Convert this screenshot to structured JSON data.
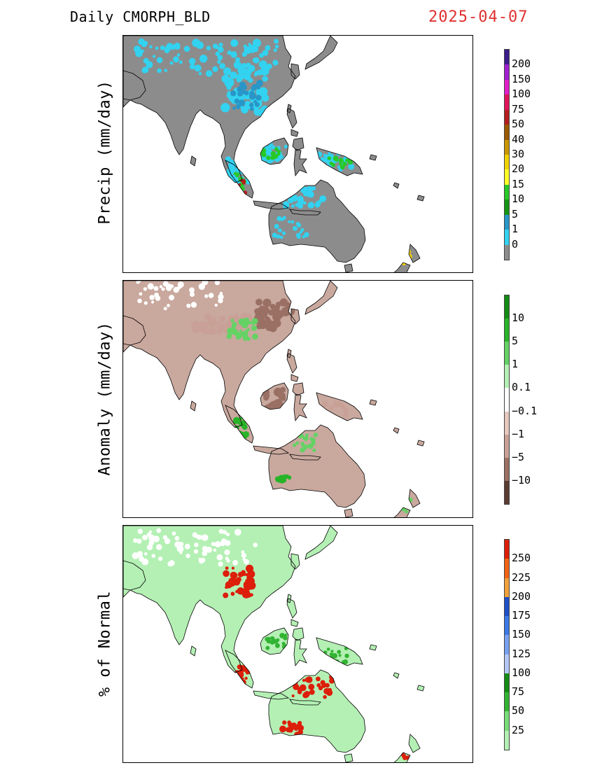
{
  "header": {
    "title": "Daily  CMORPH_BLD",
    "date": "2025-04-07",
    "date_color": "#e03030"
  },
  "panels": [
    {
      "id": "precip",
      "ylabel": "Precip (mm/day)",
      "base_land_color": "#8c8c8c",
      "legend": {
        "labels": [
          "200",
          "150",
          "100",
          "75",
          "50",
          "40",
          "30",
          "20",
          "15",
          "10",
          "5",
          "1",
          "0"
        ],
        "colors": [
          "#3c1c8c",
          "#a020d0",
          "#e020c8",
          "#e0145a",
          "#b41e1e",
          "#9a5a00",
          "#c89600",
          "#f0d200",
          "#ffff28",
          "#28c828",
          "#149614",
          "#2896c8",
          "#32d2f0",
          "#8c8c8c"
        ]
      }
    },
    {
      "id": "anomaly",
      "ylabel": "Anomaly (mm/day)",
      "base_land_color": "#c9a89e",
      "legend": {
        "labels": [
          "10",
          "5",
          "1",
          "0.1",
          "−0.1",
          "−1",
          "−5",
          "−10"
        ],
        "colors": [
          "#148c14",
          "#28b428",
          "#64d264",
          "#b4f0b4",
          "#ffffff",
          "#e6c8be",
          "#c8a096",
          "#9a7064",
          "#5a3c32"
        ]
      }
    },
    {
      "id": "percent",
      "ylabel": "% of Normal",
      "base_land_color": "#b4f0b4",
      "legend": {
        "labels": [
          "250",
          "225",
          "200",
          "175",
          "150",
          "125",
          "100",
          "75",
          "50",
          "25"
        ],
        "colors": [
          "#dc1e0a",
          "#f06414",
          "#f0a03c",
          "#1e50c8",
          "#3c78e6",
          "#78a0f0",
          "#b4c8f8",
          "#148c14",
          "#32b432",
          "#78dc78",
          "#b4f0b4"
        ]
      }
    }
  ]
}
